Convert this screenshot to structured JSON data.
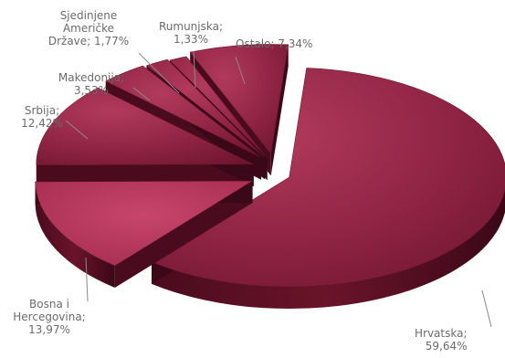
{
  "chart_data": {
    "type": "pie",
    "title": "",
    "slices": [
      {
        "name": "Hrvatska",
        "value": 59.64,
        "display": "59,64%"
      },
      {
        "name": "Bosna i Hercegovina",
        "value": 13.97,
        "display": "13,97%"
      },
      {
        "name": "Srbija",
        "value": 12.42,
        "display": "12,42%"
      },
      {
        "name": "Makedonija",
        "value": 3.53,
        "display": "3,53%"
      },
      {
        "name": "Sjedinjene Američke Države",
        "value": 1.77,
        "display": "1,77%"
      },
      {
        "name": "Rumunjska",
        "value": 1.33,
        "display": "1,33%"
      },
      {
        "name": "Ostalo",
        "value": 7.34,
        "display": "7,34%"
      }
    ],
    "labels": {
      "hrvatska": [
        "Hrvatska;",
        "59,64%"
      ],
      "bih": [
        "Bosna i",
        "Hercegovina;",
        "13,97%"
      ],
      "srbija": [
        "Srbija;",
        "12,42%"
      ],
      "makedonija": [
        "Makedonija;",
        "3,53%"
      ],
      "sad": [
        "Sjedinjene",
        "Američke",
        "Države; 1,77%"
      ],
      "rumunjska": [
        "Rumunjska;",
        "1,33%"
      ],
      "ostalo": [
        "Ostalo; 7,34%"
      ]
    },
    "colors": {
      "top_light": "#b3365a",
      "top_dark": "#7a1a36",
      "side": "#5a0f25",
      "side_dark": "#3a0818",
      "leader": "#8a8a8a",
      "label": "#6b6b6b"
    },
    "legend": "none",
    "style": "3d-exploded"
  }
}
